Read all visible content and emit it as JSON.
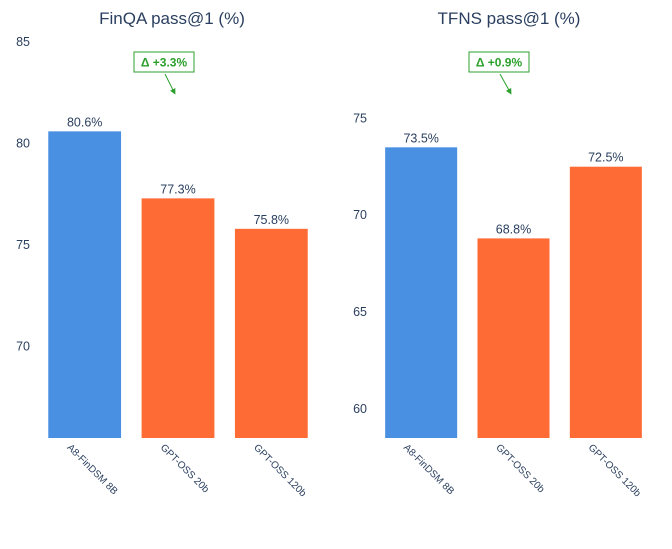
{
  "chart_data": [
    {
      "type": "bar",
      "title": "FinQA pass@1 (%)",
      "categories": [
        "A8-FinDSM 8B",
        "GPT-OSS 20b",
        "GPT-OSS 120b"
      ],
      "values": [
        80.6,
        77.3,
        75.8
      ],
      "data_labels": [
        "80.6%",
        "77.3%",
        "75.8%"
      ],
      "colors": [
        "#4a90e2",
        "#ff6b35",
        "#ff6b35"
      ],
      "ylim": [
        65.5,
        85
      ],
      "yticks": [
        70,
        75,
        80,
        85
      ],
      "grid": false,
      "annotation": {
        "text": "Δ +3.3%",
        "color": "#2ca02c"
      }
    },
    {
      "type": "bar",
      "title": "TFNS pass@1 (%)",
      "categories": [
        "A8-FinDSM 8B",
        "GPT-OSS 20b",
        "GPT-OSS 120b"
      ],
      "values": [
        73.5,
        68.8,
        72.5
      ],
      "data_labels": [
        "73.5%",
        "68.8%",
        "72.5%"
      ],
      "colors": [
        "#4a90e2",
        "#ff6b35",
        "#ff6b35"
      ],
      "ylim": [
        58.5,
        76.2
      ],
      "yticks": [
        60,
        65,
        70,
        75
      ],
      "grid": false,
      "annotation": {
        "text": "Δ +0.9%",
        "color": "#2ca02c"
      }
    }
  ]
}
